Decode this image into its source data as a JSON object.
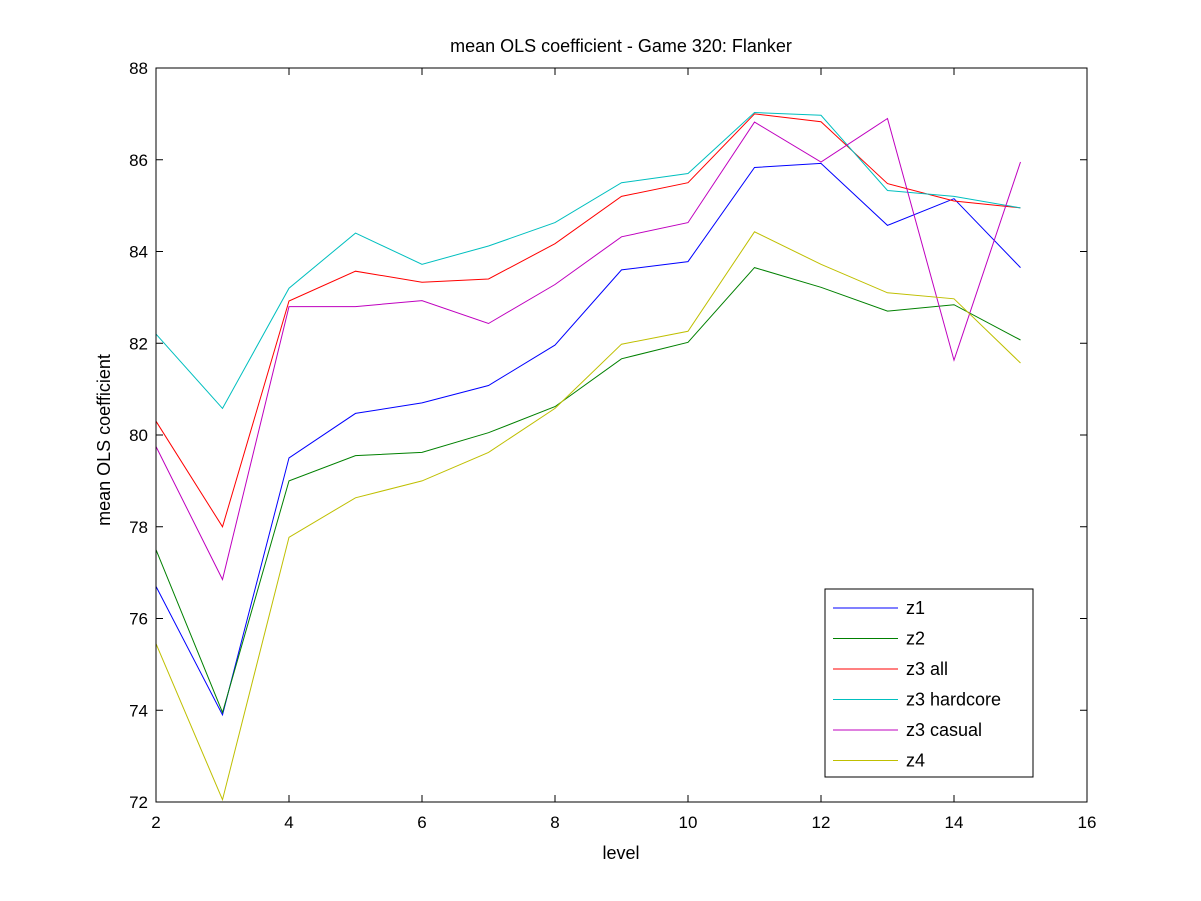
{
  "chart_data": {
    "type": "line",
    "title": "mean OLS coefficient - Game 320: Flanker",
    "xlabel": "level",
    "ylabel": "mean OLS coefficient",
    "xlim": [
      2,
      16
    ],
    "ylim": [
      72,
      88
    ],
    "xticks": [
      2,
      4,
      6,
      8,
      10,
      12,
      14,
      16
    ],
    "yticks": [
      72,
      74,
      76,
      78,
      80,
      82,
      84,
      86,
      88
    ],
    "grid": false,
    "legend_position": "bottom-right",
    "x": [
      2,
      3,
      4,
      5,
      6,
      7,
      8,
      9,
      10,
      11,
      12,
      13,
      14,
      15
    ],
    "series": [
      {
        "name": "z1",
        "color": "#0000ff",
        "values": [
          76.7,
          73.9,
          79.5,
          80.47,
          80.7,
          81.08,
          81.96,
          83.6,
          83.78,
          85.83,
          85.92,
          84.57,
          85.15,
          83.65
        ]
      },
      {
        "name": "z2",
        "color": "#008000",
        "values": [
          77.5,
          73.95,
          79.0,
          79.55,
          79.62,
          80.05,
          80.62,
          81.66,
          82.02,
          83.65,
          83.22,
          82.7,
          82.84,
          82.07
        ]
      },
      {
        "name": "z3 all",
        "color": "#ff0000",
        "values": [
          80.3,
          78.0,
          82.92,
          83.57,
          83.33,
          83.4,
          84.17,
          85.2,
          85.5,
          87.0,
          86.83,
          85.48,
          85.1,
          84.95
        ]
      },
      {
        "name": "z3 hardcore",
        "color": "#00bfbf",
        "values": [
          82.2,
          80.58,
          83.2,
          84.4,
          83.72,
          84.12,
          84.63,
          85.5,
          85.7,
          87.03,
          86.97,
          85.33,
          85.2,
          84.95
        ]
      },
      {
        "name": "z3 casual",
        "color": "#bf00bf",
        "values": [
          79.75,
          76.85,
          82.8,
          82.8,
          82.93,
          82.43,
          83.28,
          84.32,
          84.63,
          86.82,
          85.95,
          86.9,
          81.63,
          85.95
        ]
      },
      {
        "name": "z4",
        "color": "#bfbf00",
        "values": [
          75.45,
          72.05,
          77.77,
          78.63,
          79.0,
          79.62,
          80.58,
          81.98,
          82.26,
          84.43,
          83.72,
          83.1,
          82.97,
          81.57
        ]
      }
    ]
  }
}
